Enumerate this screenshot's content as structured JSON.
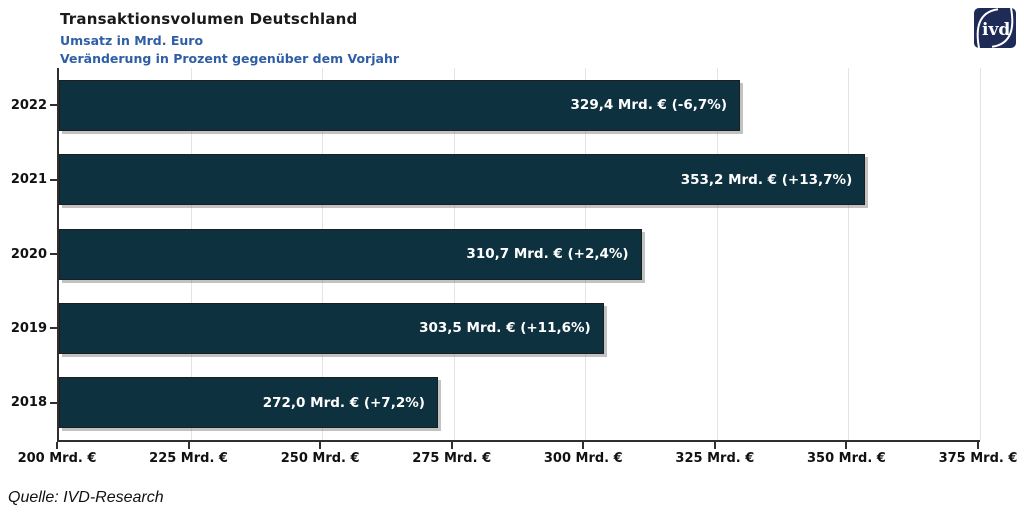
{
  "header": {
    "title": "Transaktionsvolumen Deutschland",
    "subtitle_line1": "Umsatz in Mrd. Euro",
    "subtitle_line2": "Veränderung in Prozent gegenüber dem Vorjahr",
    "logo_text": "ivd",
    "logo_color": "#1f2b57"
  },
  "chart_data": {
    "type": "bar",
    "orientation": "horizontal",
    "title": "Transaktionsvolumen Deutschland",
    "categories": [
      "2022",
      "2021",
      "2020",
      "2019",
      "2018"
    ],
    "values": [
      329.4,
      353.2,
      310.7,
      303.5,
      272.0
    ],
    "change_percent": [
      -6.7,
      13.7,
      2.4,
      11.6,
      7.2
    ],
    "bar_labels": [
      "329,4 Mrd. € (-6,7%)",
      "353,2 Mrd. € (+13,7%)",
      "310,7 Mrd. € (+2,4%)",
      "303,5 Mrd. € (+11,6%)",
      "272,0 Mrd. € (+7,2%)"
    ],
    "xlim": [
      200,
      375
    ],
    "x_tick_values": [
      200,
      225,
      250,
      275,
      300,
      325,
      350,
      375
    ],
    "x_tick_labels": [
      "200 Mrd. €",
      "225 Mrd. €",
      "250 Mrd. €",
      "275 Mrd. €",
      "300 Mrd. €",
      "325 Mrd. €",
      "350 Mrd. €",
      "375 Mrd. €"
    ],
    "grid": "vertical",
    "bar_color": "#0e3140",
    "bar_border_color": "#1d1d1d",
    "label_color": "#ffffff",
    "legend": "none"
  },
  "footer": {
    "source": "Quelle: IVD-Research"
  }
}
